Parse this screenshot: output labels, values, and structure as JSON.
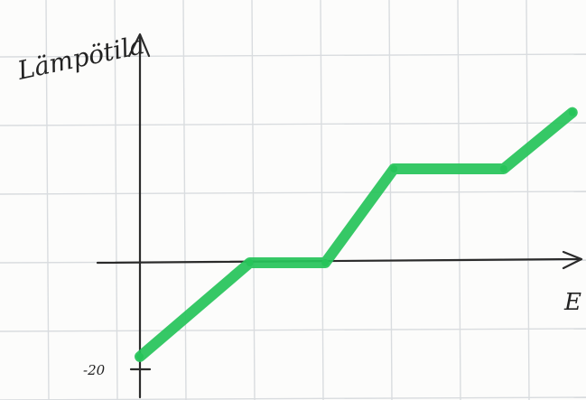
{
  "chart_data": {
    "type": "line",
    "ylabel": "Lämpötila",
    "xlabel": "E",
    "y_tick_labels": [
      "-20"
    ],
    "series": [
      {
        "color": "#27c45a",
        "x": [
          0,
          16,
          27,
          37,
          53,
          63
        ],
        "y": [
          -20,
          0,
          0,
          20,
          20,
          32
        ]
      }
    ],
    "xlim": [
      -6,
      66
    ],
    "ylim": [
      -24,
      36
    ],
    "grid": true
  }
}
